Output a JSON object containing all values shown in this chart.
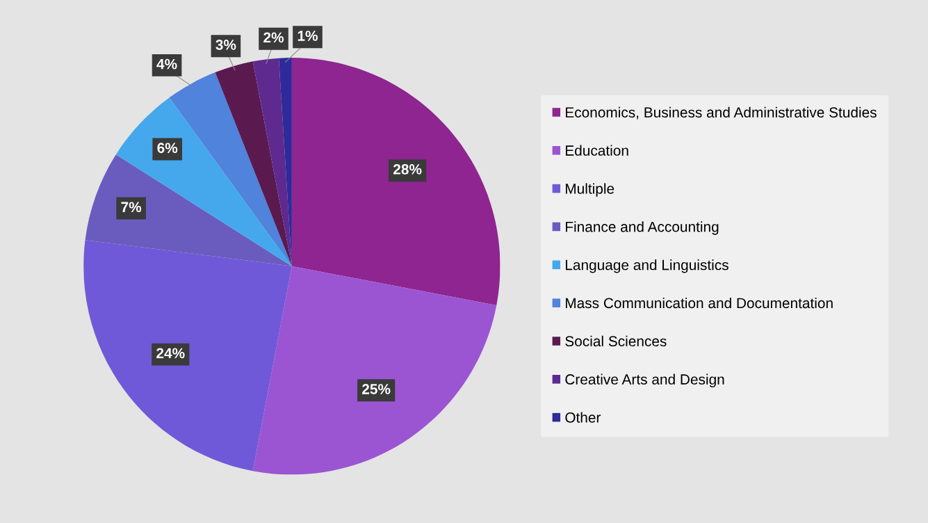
{
  "chart_data": {
    "type": "pie",
    "categories": [
      "Economics, Business and Administrative Studies",
      "Education",
      "Multiple",
      "Finance and Accounting",
      "Language and Linguistics",
      "Mass Communication and Documentation",
      "Social Sciences",
      "Creative Arts and Design",
      "Other"
    ],
    "values": [
      28,
      25,
      24,
      7,
      6,
      4,
      3,
      2,
      1
    ],
    "value_labels": [
      "28%",
      "25%",
      "24%",
      "7%",
      "6%",
      "4%",
      "3%",
      "2%",
      "1%"
    ],
    "colors": [
      "#8e2590",
      "#9b55d3",
      "#7059d8",
      "#6a5cbf",
      "#45a8ec",
      "#4f83dc",
      "#5a1a50",
      "#5f2a8f",
      "#2e2a9a"
    ],
    "legend": "right"
  }
}
